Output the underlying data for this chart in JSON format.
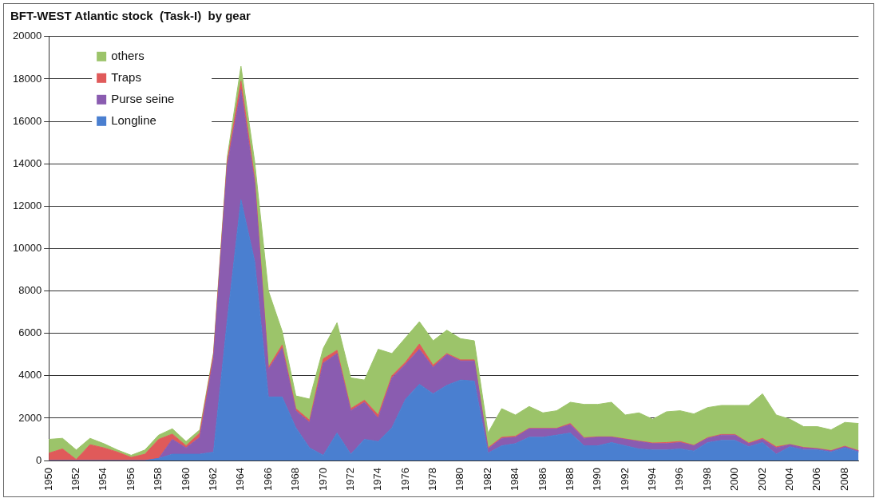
{
  "chart_data": {
    "type": "area",
    "title": "BFT-WEST Atlantic stock  (Task-I)  by gear",
    "stacked": true,
    "grid": "y",
    "legend": "top left",
    "marker": "none",
    "categories": [
      "1950",
      null,
      "1952",
      null,
      "1954",
      null,
      "1956",
      null,
      "1958",
      null,
      "1960",
      null,
      "1962",
      null,
      "1964",
      null,
      "1966",
      null,
      "1968",
      null,
      "1970",
      null,
      "1972",
      null,
      "1974",
      null,
      "1976",
      null,
      "1978",
      null,
      "1980",
      null,
      "1982",
      null,
      "1984",
      null,
      "1986",
      null,
      "1988",
      null,
      "1990",
      null,
      "1992",
      null,
      "1994",
      null,
      "1996",
      null,
      "1998",
      null,
      "2000",
      null,
      "2002",
      null,
      "2004",
      null,
      "2006",
      null,
      "2008",
      null
    ],
    "ylim": [
      0,
      20000
    ],
    "yticks": [
      0,
      2000,
      4000,
      6000,
      8000,
      10000,
      12000,
      14000,
      16000,
      18000,
      20000
    ],
    "series": [
      {
        "name": "Longline",
        "color": "#4a7fd0",
        "values": [
          0,
          0,
          0,
          0,
          0,
          0,
          0,
          0,
          100,
          300,
          300,
          300,
          400,
          6600,
          12300,
          9400,
          3000,
          3000,
          1550,
          600,
          250,
          1300,
          300,
          1000,
          900,
          1550,
          2900,
          3600,
          3150,
          3550,
          3800,
          3750,
          350,
          700,
          800,
          1100,
          1100,
          1200,
          1300,
          700,
          700,
          850,
          700,
          550,
          500,
          500,
          550,
          450,
          850,
          950,
          950,
          650,
          850,
          300,
          650,
          500,
          500,
          400,
          600,
          400
        ]
      },
      {
        "name": "Purse seine",
        "color": "#8a5cb0",
        "values": [
          0,
          0,
          0,
          0,
          0,
          0,
          0,
          0,
          0,
          700,
          300,
          800,
          4400,
          7300,
          5200,
          3700,
          1300,
          2300,
          800,
          1200,
          4350,
          3750,
          2050,
          1750,
          1100,
          2350,
          1650,
          1650,
          1250,
          1450,
          900,
          950,
          200,
          350,
          300,
          400,
          400,
          300,
          400,
          350,
          400,
          250,
          300,
          350,
          300,
          300,
          300,
          250,
          200,
          250,
          250,
          150,
          150,
          300,
          100,
          100,
          50,
          50,
          50,
          50
        ]
      },
      {
        "name": "Traps",
        "color": "#e05a5a",
        "values": [
          350,
          550,
          50,
          750,
          600,
          400,
          150,
          300,
          900,
          250,
          100,
          200,
          200,
          200,
          400,
          200,
          100,
          150,
          100,
          100,
          200,
          150,
          100,
          100,
          150,
          100,
          100,
          250,
          100,
          50,
          50,
          50,
          50,
          50,
          50,
          20,
          20,
          20,
          50,
          30,
          20,
          20,
          20,
          20,
          30,
          50,
          50,
          20,
          30,
          30,
          30,
          30,
          50,
          50,
          10,
          20,
          20,
          20,
          30,
          20
        ]
      },
      {
        "name": "others",
        "color": "#9cc46a",
        "values": [
          650,
          500,
          450,
          300,
          200,
          100,
          100,
          200,
          200,
          250,
          200,
          150,
          100,
          200,
          700,
          800,
          3600,
          650,
          600,
          1000,
          500,
          1300,
          1450,
          950,
          3100,
          1050,
          1150,
          1050,
          1150,
          1100,
          1000,
          900,
          700,
          1350,
          1000,
          1030,
          730,
          830,
          1000,
          1570,
          1530,
          1630,
          1130,
          1330,
          1120,
          1450,
          1450,
          1480,
          1420,
          1370,
          1370,
          1770,
          2100,
          1500,
          1190,
          980,
          1030,
          980,
          1120,
          1280
        ]
      }
    ]
  }
}
